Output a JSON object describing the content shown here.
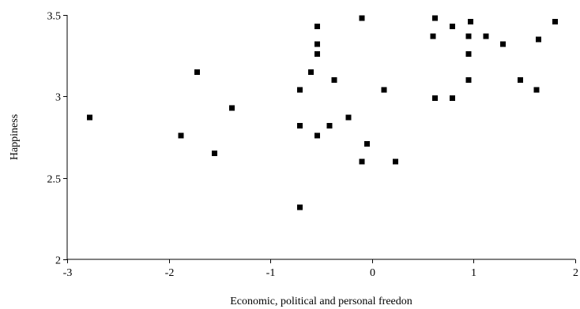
{
  "chart_data": {
    "type": "scatter",
    "title": "",
    "xlabel": "Economic, political and personal freedon",
    "ylabel": "Happiness",
    "xlim": [
      -3,
      2
    ],
    "ylim": [
      2,
      3.5
    ],
    "x_ticks": [
      -3,
      -2,
      -1,
      0,
      1,
      2
    ],
    "x_tick_labels": [
      "-3",
      "-2",
      "-1",
      "0",
      "1",
      "2"
    ],
    "y_ticks": [
      2,
      2.5,
      3,
      3.5
    ],
    "y_tick_labels": [
      "2",
      "2.5",
      "3",
      "3.5"
    ],
    "grid": false,
    "legend": "none",
    "marker": "square",
    "marker_color": "#000000",
    "points": [
      {
        "x": -2.78,
        "y": 2.87
      },
      {
        "x": -1.88,
        "y": 2.76
      },
      {
        "x": -1.72,
        "y": 3.15
      },
      {
        "x": -1.55,
        "y": 2.65
      },
      {
        "x": -1.38,
        "y": 2.93
      },
      {
        "x": -0.71,
        "y": 3.04
      },
      {
        "x": -0.71,
        "y": 2.82
      },
      {
        "x": -0.71,
        "y": 2.32
      },
      {
        "x": -0.6,
        "y": 3.15
      },
      {
        "x": -0.54,
        "y": 3.43
      },
      {
        "x": -0.54,
        "y": 3.32
      },
      {
        "x": -0.54,
        "y": 3.26
      },
      {
        "x": -0.54,
        "y": 2.76
      },
      {
        "x": -0.42,
        "y": 2.82
      },
      {
        "x": -0.37,
        "y": 3.1
      },
      {
        "x": -0.23,
        "y": 2.87
      },
      {
        "x": -0.1,
        "y": 3.48
      },
      {
        "x": -0.1,
        "y": 2.6
      },
      {
        "x": -0.05,
        "y": 2.71
      },
      {
        "x": 0.12,
        "y": 3.04
      },
      {
        "x": 0.23,
        "y": 2.6
      },
      {
        "x": 0.6,
        "y": 3.37
      },
      {
        "x": 0.62,
        "y": 3.48
      },
      {
        "x": 0.62,
        "y": 2.99
      },
      {
        "x": 0.79,
        "y": 3.43
      },
      {
        "x": 0.79,
        "y": 2.99
      },
      {
        "x": 0.95,
        "y": 3.37
      },
      {
        "x": 0.95,
        "y": 3.26
      },
      {
        "x": 0.95,
        "y": 3.1
      },
      {
        "x": 0.97,
        "y": 3.46
      },
      {
        "x": 1.12,
        "y": 3.37
      },
      {
        "x": 1.29,
        "y": 3.32
      },
      {
        "x": 1.46,
        "y": 3.1
      },
      {
        "x": 1.62,
        "y": 3.04
      },
      {
        "x": 1.64,
        "y": 3.35
      },
      {
        "x": 1.8,
        "y": 3.46
      }
    ]
  }
}
